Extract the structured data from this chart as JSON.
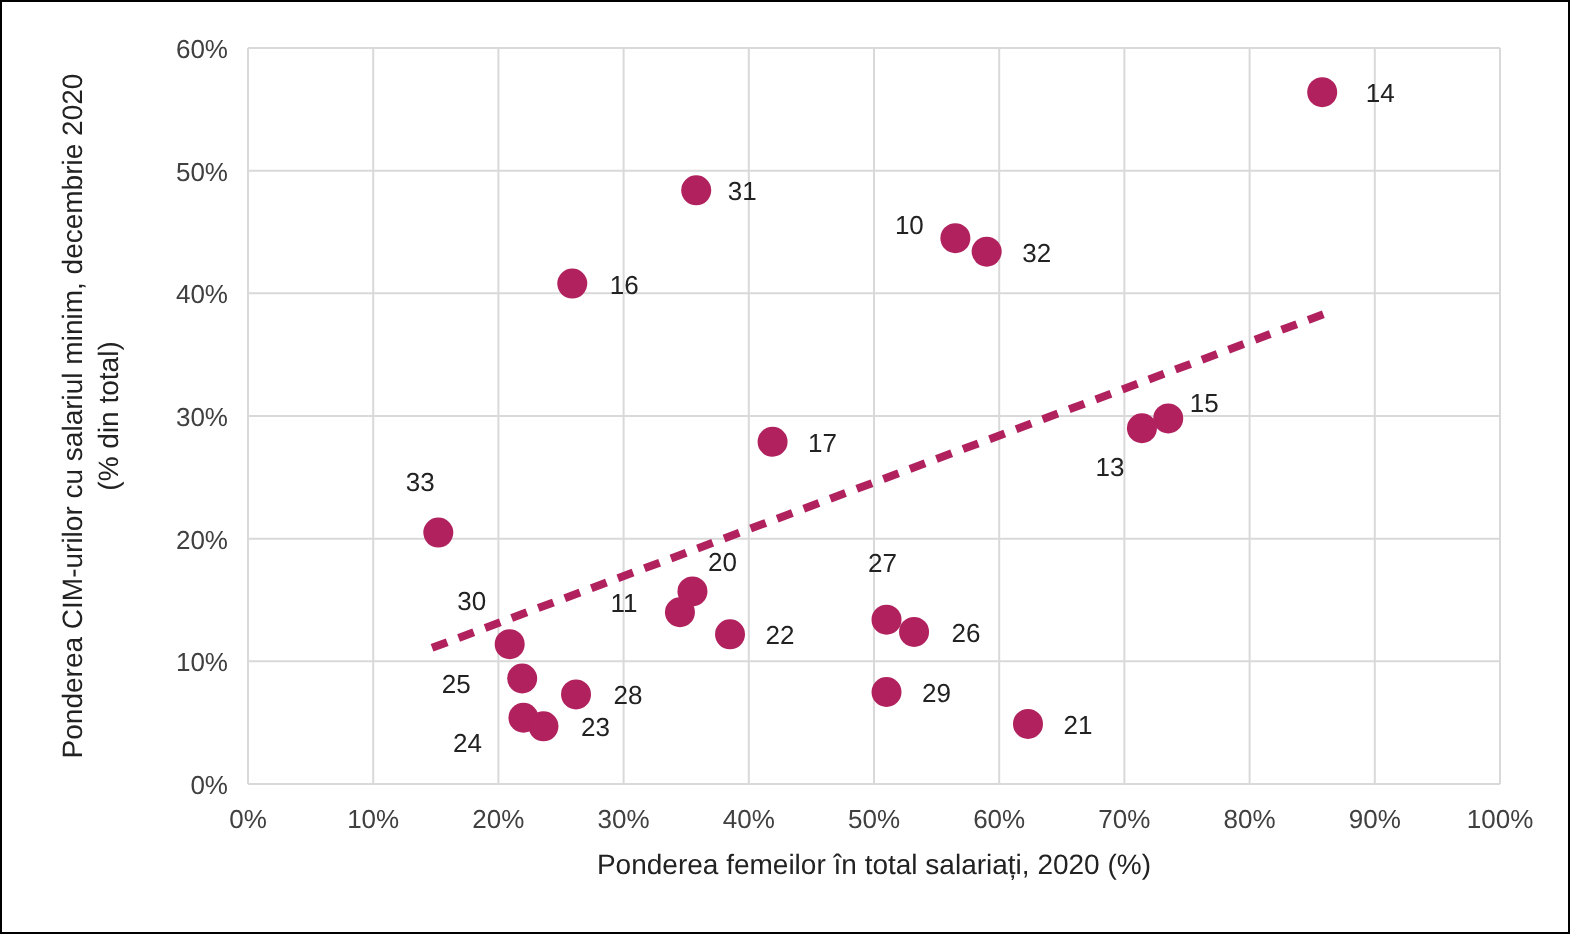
{
  "chart_data": {
    "type": "scatter",
    "xlabel": "Ponderea femeilor în total salariați, 2020 (%)",
    "ylabel": "Ponderea CIM-urilor cu salariul minim, decembrie 2020  (% din total)",
    "xlim": [
      0,
      100
    ],
    "ylim": [
      0,
      60
    ],
    "xticks": [
      {
        "value": 0,
        "label": "0%"
      },
      {
        "value": 10,
        "label": "10%"
      },
      {
        "value": 20,
        "label": "20%"
      },
      {
        "value": 30,
        "label": "30%"
      },
      {
        "value": 40,
        "label": "40%"
      },
      {
        "value": 50,
        "label": "50%"
      },
      {
        "value": 60,
        "label": "60%"
      },
      {
        "value": 70,
        "label": "70%"
      },
      {
        "value": 80,
        "label": "80%"
      },
      {
        "value": 90,
        "label": "90%"
      },
      {
        "value": 100,
        "label": "100%"
      }
    ],
    "yticks": [
      {
        "value": 0,
        "label": "0%"
      },
      {
        "value": 10,
        "label": "10%"
      },
      {
        "value": 20,
        "label": "20%"
      },
      {
        "value": 30,
        "label": "30%"
      },
      {
        "value": 40,
        "label": "40%"
      },
      {
        "value": 50,
        "label": "50%"
      },
      {
        "value": 60,
        "label": "60%"
      }
    ],
    "grid": true,
    "marker": "circle",
    "series": [
      {
        "color": "#b0215e",
        "x": [
          85.8,
          35.8,
          56.5,
          59,
          25.9,
          41.9,
          73.5,
          71.4,
          15.2,
          35.5,
          34.5,
          38.5,
          51,
          53.2,
          20.9,
          21.9,
          26.2,
          22,
          23.6,
          51,
          62.3
        ],
        "values": [
          56.4,
          48.4,
          44.5,
          43.4,
          40.8,
          27.9,
          29.8,
          29,
          20.5,
          15.7,
          14,
          12.2,
          13.4,
          12.4,
          11.4,
          8.6,
          7.3,
          5.4,
          4.7,
          7.5,
          4.9
        ]
      },
      {
        "type": "line",
        "color": "#b0215e",
        "line_style": "dashed",
        "marker": "none",
        "x": [
          14.7,
          85.9
        ],
        "values": [
          11.1,
          38.3
        ]
      }
    ],
    "annotations": [
      {
        "text": "14",
        "x": 85.8,
        "y": 56.4
      },
      {
        "text": "31",
        "x": 35.8,
        "y": 48.4
      },
      {
        "text": "10",
        "x": 56.5,
        "y": 44.5
      },
      {
        "text": "32",
        "x": 59,
        "y": 43.4
      },
      {
        "text": "16",
        "x": 25.9,
        "y": 40.8
      },
      {
        "text": "17",
        "x": 41.9,
        "y": 27.9
      },
      {
        "text": "15",
        "x": 73.5,
        "y": 29.8
      },
      {
        "text": "13",
        "x": 71.4,
        "y": 29
      },
      {
        "text": "33",
        "x": 15.2,
        "y": 20.5
      },
      {
        "text": "20",
        "x": 35.5,
        "y": 15.7
      },
      {
        "text": "11",
        "x": 34.5,
        "y": 14
      },
      {
        "text": "22",
        "x": 38.5,
        "y": 12.2
      },
      {
        "text": "27",
        "x": 51,
        "y": 13.4
      },
      {
        "text": "26",
        "x": 53.2,
        "y": 12.4
      },
      {
        "text": "30",
        "x": 20.9,
        "y": 11.4
      },
      {
        "text": "25",
        "x": 21.9,
        "y": 8.6
      },
      {
        "text": "28",
        "x": 26.2,
        "y": 7.3
      },
      {
        "text": "24",
        "x": 22,
        "y": 5.4
      },
      {
        "text": "23",
        "x": 23.6,
        "y": 4.7
      },
      {
        "text": "29",
        "x": 51,
        "y": 7.5
      },
      {
        "text": "21",
        "x": 62.3,
        "y": 4.9
      }
    ]
  }
}
